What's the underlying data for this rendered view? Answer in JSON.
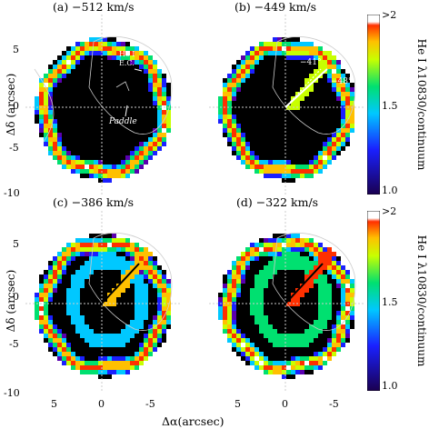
{
  "figure": {
    "xlabel": "Δα(arcsec)",
    "ylabel": "Δδ (arcsec)",
    "colorbar_label": "He I λ10830/continuum",
    "colorbar_ticks": [
      ">2",
      "1.5",
      "1.0"
    ],
    "colorbar_range": [
      1.0,
      2.0
    ],
    "colormap_colors": [
      "#000000",
      "#1a0050",
      "#5a00b0",
      "#1a20ff",
      "#00c8ff",
      "#00e070",
      "#c8ff00",
      "#ffc000",
      "#ff3000",
      "#ffffff"
    ],
    "x_ticks": [
      "5",
      "0",
      "-5"
    ],
    "y_ticks": [
      "5",
      "0",
      "-5",
      "-10"
    ]
  },
  "panels": [
    {
      "label": "(a)  −512 km/s",
      "annotations": [
        "He I",
        "E.C.",
        "Paddle"
      ]
    },
    {
      "label": "(b)  −449 km/s",
      "annotations": [
        "−41°",
        "−48°"
      ]
    },
    {
      "label": "(c)  −386 km/s",
      "annotations": []
    },
    {
      "label": "(d)  −322 km/s",
      "annotations": []
    }
  ]
}
